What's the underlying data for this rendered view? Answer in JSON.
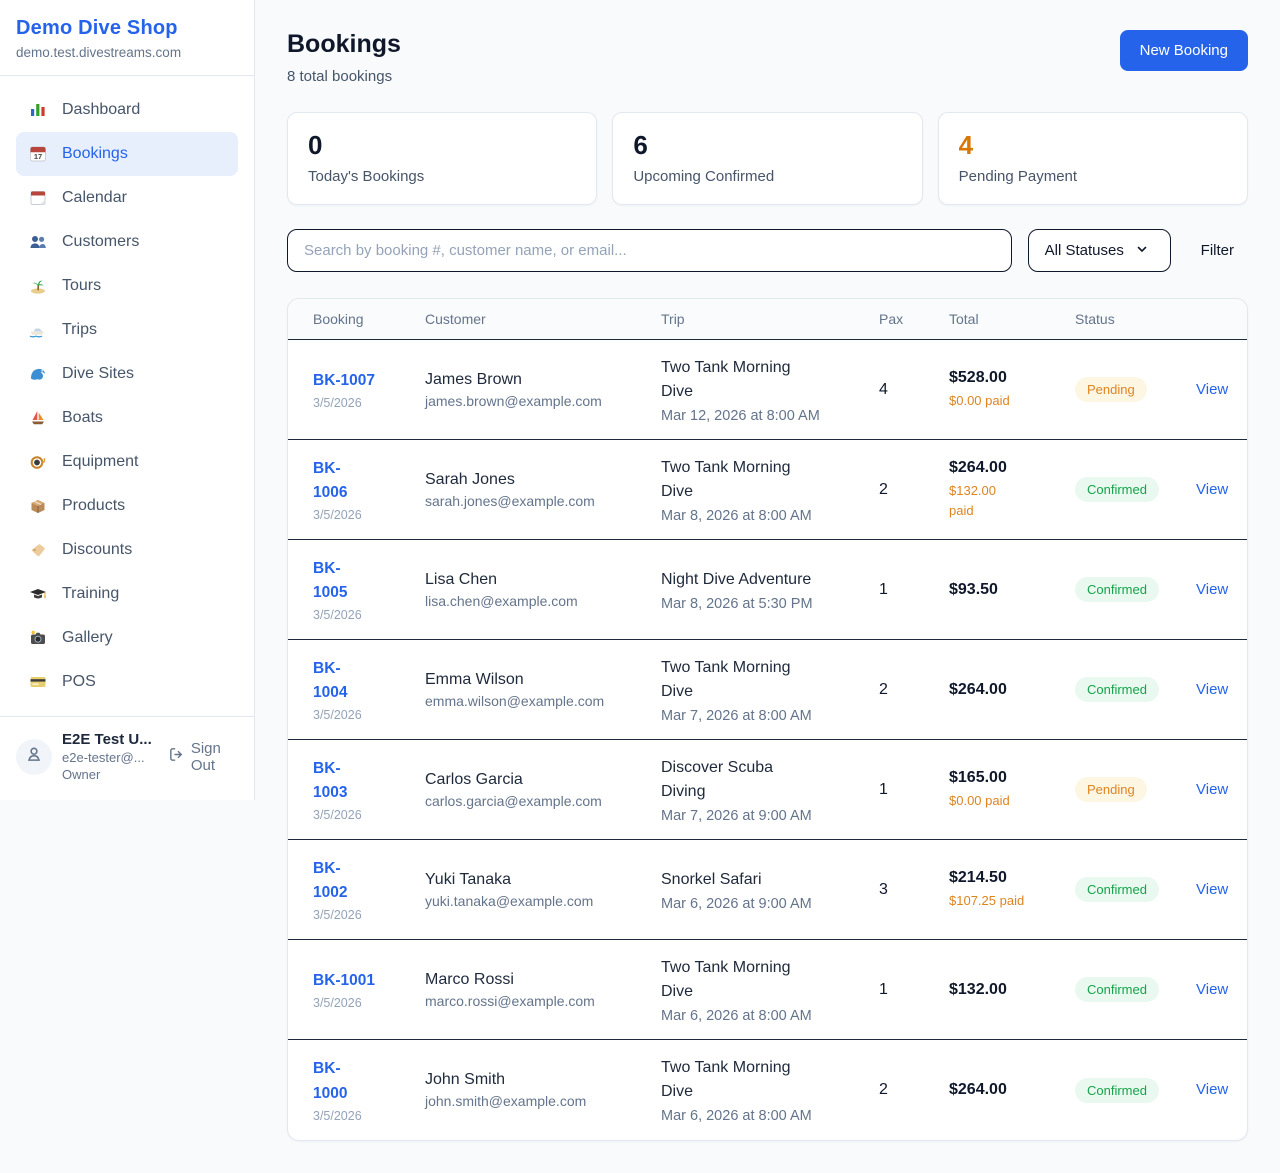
{
  "brand": {
    "name": "Demo Dive Shop",
    "domain": "demo.test.divestreams.com"
  },
  "sidebar": {
    "items": [
      {
        "label": "Dashboard",
        "icon": "bar-chart-icon",
        "active": false
      },
      {
        "label": "Bookings",
        "icon": "calendar-date-icon",
        "active": true
      },
      {
        "label": "Calendar",
        "icon": "calendar-icon",
        "active": false
      },
      {
        "label": "Customers",
        "icon": "customers-icon",
        "active": false
      },
      {
        "label": "Tours",
        "icon": "island-icon",
        "active": false
      },
      {
        "label": "Trips",
        "icon": "speedboat-icon",
        "active": false
      },
      {
        "label": "Dive Sites",
        "icon": "wave-icon",
        "active": false
      },
      {
        "label": "Boats",
        "icon": "sailboat-icon",
        "active": false
      },
      {
        "label": "Equipment",
        "icon": "dive-mask-icon",
        "active": false
      },
      {
        "label": "Products",
        "icon": "package-icon",
        "active": false
      },
      {
        "label": "Discounts",
        "icon": "tag-icon",
        "active": false
      },
      {
        "label": "Training",
        "icon": "graduation-cap-icon",
        "active": false
      },
      {
        "label": "Gallery",
        "icon": "camera-icon",
        "active": false
      },
      {
        "label": "POS",
        "icon": "credit-card-icon",
        "active": false
      }
    ]
  },
  "user": {
    "name": "E2E Test U...",
    "email": "e2e-tester@...",
    "role": "Owner",
    "sign_out_label": "Sign Out"
  },
  "header": {
    "title": "Bookings",
    "subtitle": "8 total bookings",
    "new_booking_label": "New Booking"
  },
  "stats": [
    {
      "value": "0",
      "label": "Today's Bookings",
      "value_color": "#0f172a"
    },
    {
      "value": "6",
      "label": "Upcoming Confirmed",
      "value_color": "#0f172a"
    },
    {
      "value": "4",
      "label": "Pending Payment",
      "value_color": "#d97706"
    }
  ],
  "filters": {
    "search_placeholder": "Search by booking #, customer name, or email...",
    "status_selected": "All Statuses",
    "filter_label": "Filter"
  },
  "table": {
    "columns": [
      "Booking",
      "Customer",
      "Trip",
      "Pax",
      "Total",
      "Status"
    ],
    "view_label": "View",
    "rows": [
      {
        "id": "BK-1007",
        "date": "3/5/2026",
        "customer_name": "James Brown",
        "customer_email": "james.brown@example.com",
        "trip_name": "Two Tank Morning\nDive",
        "trip_datetime": "Mar 12, 2026 at 8:00 AM",
        "pax": "4",
        "total": "$528.00",
        "paid": "$0.00 paid",
        "status": "Pending"
      },
      {
        "id": "BK-\n1006",
        "date": "3/5/2026",
        "customer_name": "Sarah Jones",
        "customer_email": "sarah.jones@example.com",
        "trip_name": "Two Tank Morning\nDive",
        "trip_datetime": "Mar 8, 2026 at 8:00 AM",
        "pax": "2",
        "total": "$264.00",
        "paid": "$132.00\npaid",
        "status": "Confirmed"
      },
      {
        "id": "BK-\n1005",
        "date": "3/5/2026",
        "customer_name": "Lisa Chen",
        "customer_email": "lisa.chen@example.com",
        "trip_name": "Night Dive Adventure",
        "trip_datetime": "Mar 8, 2026 at 5:30 PM",
        "pax": "1",
        "total": "$93.50",
        "paid": "",
        "status": "Confirmed"
      },
      {
        "id": "BK-\n1004",
        "date": "3/5/2026",
        "customer_name": "Emma Wilson",
        "customer_email": "emma.wilson@example.com",
        "trip_name": "Two Tank Morning\nDive",
        "trip_datetime": "Mar 7, 2026 at 8:00 AM",
        "pax": "2",
        "total": "$264.00",
        "paid": "",
        "status": "Confirmed"
      },
      {
        "id": "BK-\n1003",
        "date": "3/5/2026",
        "customer_name": "Carlos Garcia",
        "customer_email": "carlos.garcia@example.com",
        "trip_name": "Discover Scuba\nDiving",
        "trip_datetime": "Mar 7, 2026 at 9:00 AM",
        "pax": "1",
        "total": "$165.00",
        "paid": "$0.00 paid",
        "status": "Pending"
      },
      {
        "id": "BK-\n1002",
        "date": "3/5/2026",
        "customer_name": "Yuki Tanaka",
        "customer_email": "yuki.tanaka@example.com",
        "trip_name": "Snorkel Safari",
        "trip_datetime": "Mar 6, 2026 at 9:00 AM",
        "pax": "3",
        "total": "$214.50",
        "paid": "$107.25 paid",
        "status": "Confirmed"
      },
      {
        "id": "BK-1001",
        "date": "3/5/2026",
        "customer_name": "Marco Rossi",
        "customer_email": "marco.rossi@example.com",
        "trip_name": "Two Tank Morning\nDive",
        "trip_datetime": "Mar 6, 2026 at 8:00 AM",
        "pax": "1",
        "total": "$132.00",
        "paid": "",
        "status": "Confirmed"
      },
      {
        "id": "BK-\n1000",
        "date": "3/5/2026",
        "customer_name": "John Smith",
        "customer_email": "john.smith@example.com",
        "trip_name": "Two Tank Morning\nDive",
        "trip_datetime": "Mar 6, 2026 at 8:00 AM",
        "pax": "2",
        "total": "$264.00",
        "paid": "",
        "status": "Confirmed"
      }
    ]
  },
  "colors": {
    "accent": "#2563eb",
    "pending_bg": "#fdf6e3",
    "pending_text": "#dd8420",
    "confirmed_bg": "#e9f9ef",
    "confirmed_text": "#16a34a",
    "stat_warning": "#d97706",
    "row_divider": "#1e293b"
  }
}
